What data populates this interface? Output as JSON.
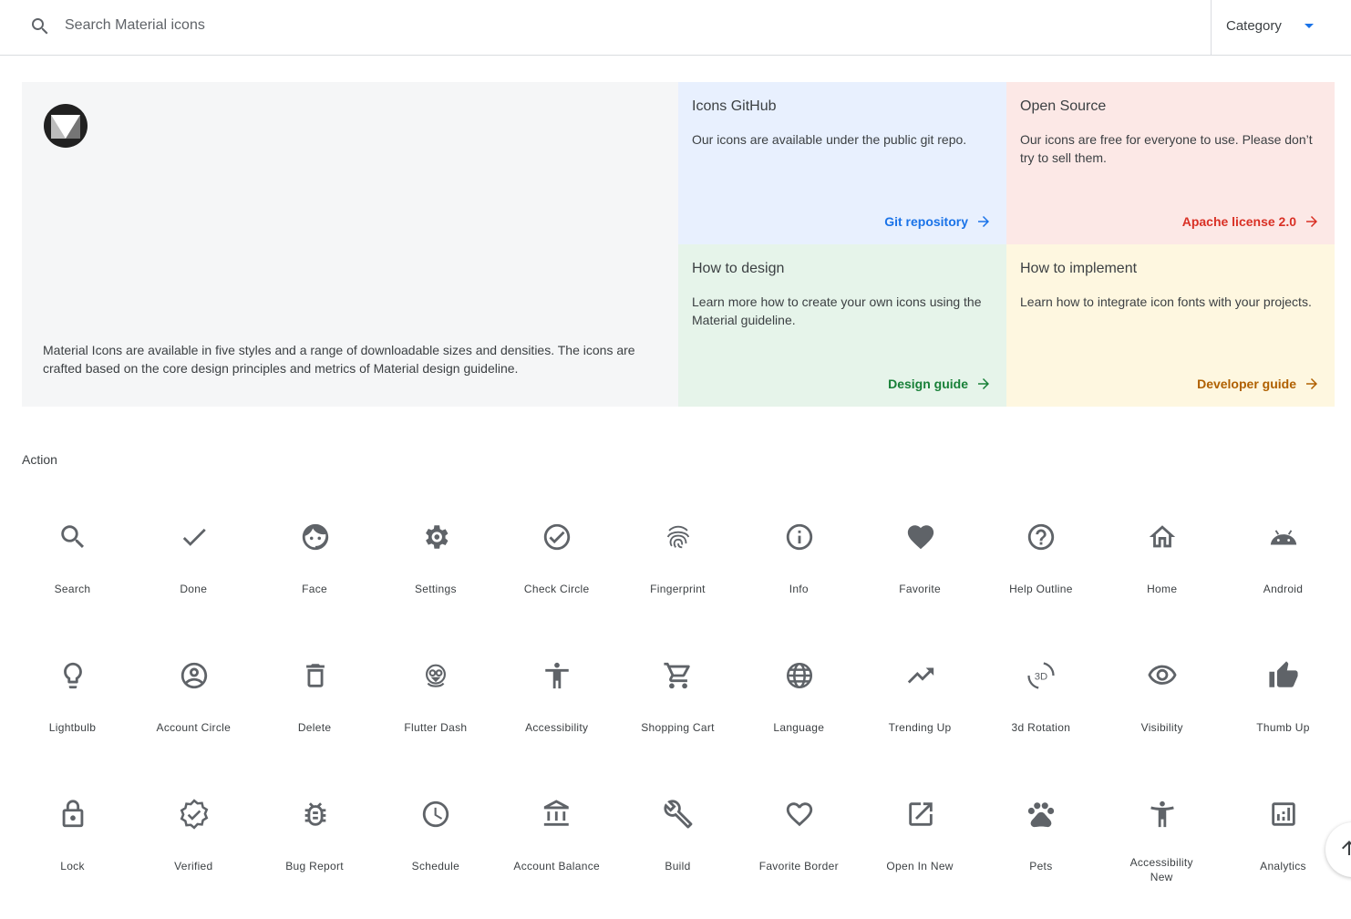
{
  "search": {
    "placeholder": "Search Material icons",
    "value": ""
  },
  "category": {
    "label": "Category"
  },
  "hero": {
    "description": "Material Icons are available in five styles and a range of downloadable sizes and densities. The icons are crafted based on the core design principles and metrics of Material design guideline.",
    "cards": [
      {
        "title": "Icons GitHub",
        "text": "Our icons are available under the public git repo.",
        "link": "Git repository",
        "bg": "#e8f0fe",
        "color": "#1a73e8"
      },
      {
        "title": "Open Source",
        "text": "Our icons are free for everyone to use. Please don’t try to sell them.",
        "link": "Apache license 2.0",
        "bg": "#fce8e6",
        "color": "#d93025"
      },
      {
        "title": "How to design",
        "text": "Learn more how to create your own icons using the Material guideline.",
        "link": "Design guide",
        "bg": "#e6f4ea",
        "color": "#188038"
      },
      {
        "title": "How to implement",
        "text": "Learn how to integrate icon fonts with your projects.",
        "link": "Developer guide",
        "bg": "#fef7e0",
        "color": "#b06000"
      }
    ]
  },
  "section": {
    "title": "Action"
  },
  "icons": [
    {
      "label": "Search",
      "icon": "search"
    },
    {
      "label": "Done",
      "icon": "done"
    },
    {
      "label": "Face",
      "icon": "face"
    },
    {
      "label": "Settings",
      "icon": "settings"
    },
    {
      "label": "Check Circle",
      "icon": "check-circle"
    },
    {
      "label": "Fingerprint",
      "icon": "fingerprint"
    },
    {
      "label": "Info",
      "icon": "info"
    },
    {
      "label": "Favorite",
      "icon": "favorite"
    },
    {
      "label": "Help Outline",
      "icon": "help-outline"
    },
    {
      "label": "Home",
      "icon": "home"
    },
    {
      "label": "Android",
      "icon": "android"
    },
    {
      "label": "Lightbulb",
      "icon": "lightbulb"
    },
    {
      "label": "Account Circle",
      "icon": "account-circle"
    },
    {
      "label": "Delete",
      "icon": "delete"
    },
    {
      "label": "Flutter Dash",
      "icon": "flutter-dash"
    },
    {
      "label": "Accessibility",
      "icon": "accessibility"
    },
    {
      "label": "Shopping Cart",
      "icon": "shopping-cart"
    },
    {
      "label": "Language",
      "icon": "language"
    },
    {
      "label": "Trending Up",
      "icon": "trending-up"
    },
    {
      "label": "3d Rotation",
      "icon": "3d-rotation"
    },
    {
      "label": "Visibility",
      "icon": "visibility"
    },
    {
      "label": "Thumb Up",
      "icon": "thumb-up"
    },
    {
      "label": "Lock",
      "icon": "lock"
    },
    {
      "label": "Verified",
      "icon": "verified"
    },
    {
      "label": "Bug Report",
      "icon": "bug-report"
    },
    {
      "label": "Schedule",
      "icon": "schedule"
    },
    {
      "label": "Account Balance",
      "icon": "account-balance"
    },
    {
      "label": "Build",
      "icon": "build"
    },
    {
      "label": "Favorite Border",
      "icon": "favorite-border"
    },
    {
      "label": "Open In New",
      "icon": "open-in-new"
    },
    {
      "label": "Pets",
      "icon": "pets"
    },
    {
      "label": "Accessibility New",
      "icon": "accessibility-new"
    },
    {
      "label": "Analytics",
      "icon": "analytics"
    }
  ]
}
